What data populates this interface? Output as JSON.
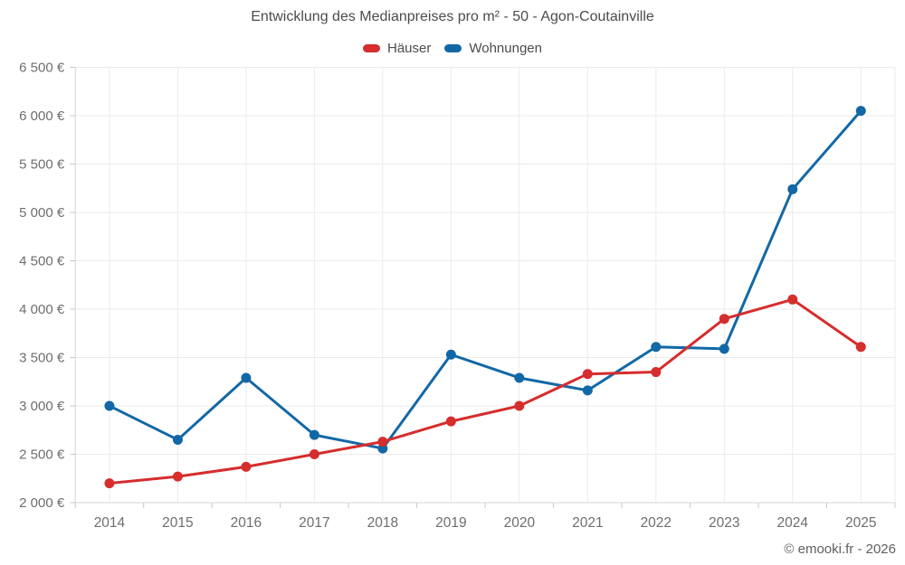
{
  "chart_data": {
    "type": "line",
    "title": "Entwicklung des Medianpreises pro m² - 50 - Agon-Coutainville",
    "categories": [
      "2014",
      "2015",
      "2016",
      "2017",
      "2018",
      "2019",
      "2020",
      "2021",
      "2022",
      "2023",
      "2024",
      "2025"
    ],
    "series": [
      {
        "name": "Häuser",
        "color": "#d62d2d",
        "values": [
          2200,
          2270,
          2370,
          2500,
          2630,
          2840,
          3000,
          3330,
          3350,
          3900,
          4100,
          3610
        ]
      },
      {
        "name": "Wohnungen",
        "color": "#1268a6",
        "values": [
          3000,
          2650,
          3290,
          2700,
          2560,
          3530,
          3290,
          3160,
          3610,
          3590,
          5240,
          6050
        ]
      }
    ],
    "xlabel": "",
    "ylabel": "",
    "ylim": [
      2000,
      6500
    ],
    "y_tick_step": 500,
    "y_tick_labels": [
      "2 000 €",
      "2 500 €",
      "3 000 €",
      "3 500 €",
      "4 000 €",
      "4 500 €",
      "5 000 €",
      "5 500 €",
      "6 000 €",
      "6 500 €"
    ],
    "grid": true,
    "legend_position": "top"
  },
  "footer": {
    "credit": "© emooki.fr - 2026"
  },
  "colors": {
    "background": "#ffffff",
    "gridline": "#ebebeb",
    "axis_line": "#d6d6d6",
    "tick_mark": "#c9c9c9",
    "axis_label": "#6e6e6e",
    "title_text": "#4c4c4c",
    "credit_text": "#5f5f5f"
  }
}
